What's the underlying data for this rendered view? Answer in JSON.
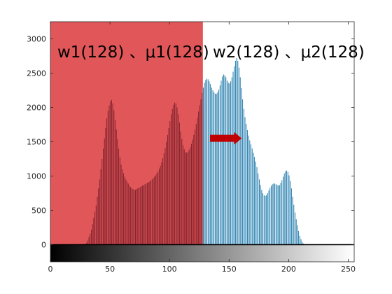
{
  "chart_data": {
    "type": "bar",
    "title": "",
    "xlabel": "",
    "ylabel": "",
    "xlim": [
      0,
      255
    ],
    "ylim": [
      -250,
      3250
    ],
    "grid": false,
    "x_ticks": [
      "0",
      "50",
      "100",
      "150",
      "200",
      "250"
    ],
    "y_ticks": [
      "0",
      "500",
      "1000",
      "1500",
      "2000",
      "2500",
      "3000"
    ],
    "threshold": 128,
    "region_labels": {
      "left": "w1(128) 、μ1(128)",
      "right": "w2(128) 、μ2(128)"
    },
    "arrow_direction": "right",
    "colors": {
      "left_region_fill": "#e15759",
      "left_bars": "#7a1e2a",
      "right_bars": "#1273a8",
      "arrow": "#c00000",
      "axes": "#262626"
    },
    "series": [
      {
        "x_start": 0,
        "values": [
          0,
          0,
          0,
          0,
          0,
          0,
          0,
          0,
          0,
          0,
          0,
          0,
          0,
          0,
          0,
          0,
          0,
          0,
          0,
          0,
          0,
          0,
          0,
          0,
          0,
          0,
          0,
          0,
          0,
          0,
          25,
          60,
          110,
          160,
          220,
          300,
          390,
          480,
          570,
          700,
          820,
          950,
          1100,
          1250,
          1400,
          1550,
          1700,
          1840,
          1950,
          2030,
          2090,
          2110,
          2060,
          1960,
          1820,
          1680,
          1540,
          1400,
          1280,
          1170,
          1100,
          1040,
          990,
          950,
          920,
          890,
          860,
          840,
          820,
          810,
          800,
          800,
          810,
          820,
          830,
          840,
          850,
          860,
          870,
          880,
          890,
          900,
          910,
          920,
          935,
          950,
          970,
          990,
          1010,
          1040,
          1070,
          1110,
          1150,
          1200,
          1260,
          1330,
          1410,
          1500,
          1600,
          1700,
          1800,
          1900,
          1980,
          2040,
          2070,
          2060,
          2000,
          1900,
          1780,
          1650,
          1540,
          1450,
          1390,
          1350,
          1340,
          1350,
          1380,
          1420,
          1470,
          1530,
          1600,
          1680,
          1760,
          1850,
          1940,
          2030,
          2120,
          2210,
          2290,
          2360,
          2400,
          2420,
          2410,
          2380,
          2340,
          2290,
          2250,
          2220,
          2200,
          2200,
          2220,
          2260,
          2320,
          2390,
          2450,
          2480,
          2470,
          2440,
          2390,
          2360,
          2350,
          2380,
          2440,
          2520,
          2600,
          2680,
          2720,
          2680,
          2580,
          2440,
          2280,
          2120,
          1980,
          1860,
          1760,
          1670,
          1590,
          1520,
          1460,
          1400,
          1340,
          1280,
          1210,
          1130,
          1040,
          950,
          870,
          800,
          750,
          720,
          710,
          720,
          750,
          790,
          830,
          860,
          880,
          890,
          890,
          880,
          870,
          860,
          870,
          900,
          940,
          990,
          1040,
          1070,
          1080,
          1060,
          1010,
          930,
          820,
          700,
          580,
          470,
          370,
          280,
          200,
          130,
          80,
          40,
          15,
          5,
          0,
          0,
          0,
          0,
          0,
          0,
          0,
          0,
          0,
          0,
          0,
          0,
          0,
          0,
          0,
          0,
          0,
          0,
          0,
          0,
          0,
          0,
          0,
          0,
          0,
          0,
          0,
          0,
          0
        ]
      }
    ]
  }
}
